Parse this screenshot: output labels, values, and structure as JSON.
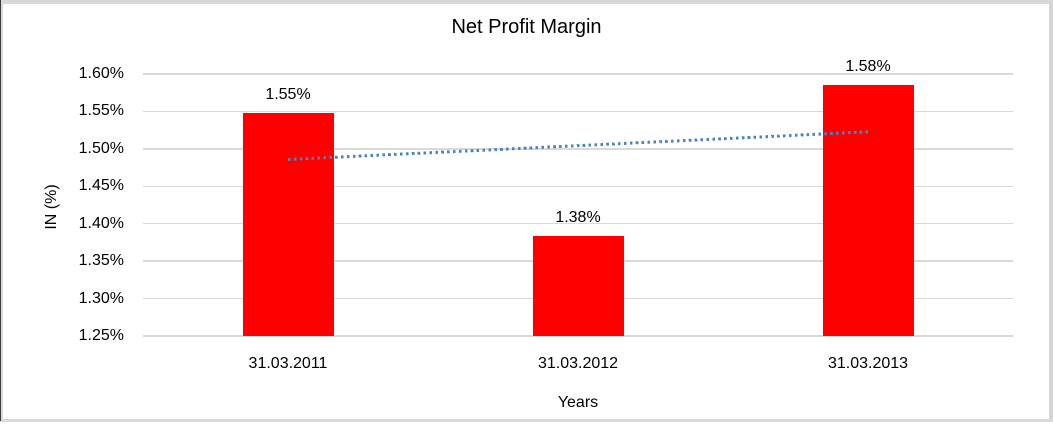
{
  "chart_data": {
    "type": "bar",
    "title": "Net Profit Margin",
    "xlabel": "Years",
    "ylabel": "IN (%)",
    "categories": [
      "31.03.2011",
      "31.03.2012",
      "31.03.2013"
    ],
    "values": [
      1.548,
      1.383,
      1.585
    ],
    "data_labels": [
      "1.55%",
      "1.38%",
      "1.58%"
    ],
    "ylim": [
      1.25,
      1.6
    ],
    "ytick_step": 0.05,
    "yticks": [
      {
        "label": "1.60%",
        "value": 1.6
      },
      {
        "label": "1.55%",
        "value": 1.55
      },
      {
        "label": "1.50%",
        "value": 1.5
      },
      {
        "label": "1.45%",
        "value": 1.45
      },
      {
        "label": "1.40%",
        "value": 1.4
      },
      {
        "label": "1.35%",
        "value": 1.35
      },
      {
        "label": "1.30%",
        "value": 1.3
      },
      {
        "label": "1.25%",
        "value": 1.25
      }
    ],
    "grid": true,
    "legend": false,
    "bar_color": "#ff0000",
    "gridline_color": "#d9d9d9",
    "text_color": "#000000",
    "trendline": {
      "type": "linear",
      "style": "dotted",
      "color": "#4f81bd",
      "start_value": 1.4865,
      "end_value": 1.5235
    }
  }
}
